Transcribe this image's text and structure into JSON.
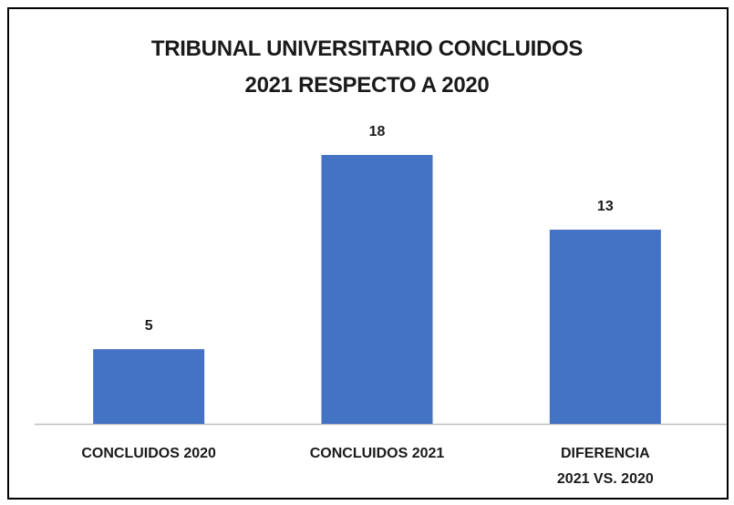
{
  "chart_data": {
    "type": "bar",
    "title": "TRIBUNAL UNIVERSITARIO CONCLUIDOS\n2021 RESPECTO A 2020",
    "categories": [
      "CONCLUIDOS 2020",
      "CONCLUIDOS 2021",
      "DIFERENCIA\n2021 VS. 2020"
    ],
    "values": [
      5,
      18,
      13
    ],
    "color": "#4472c4"
  }
}
